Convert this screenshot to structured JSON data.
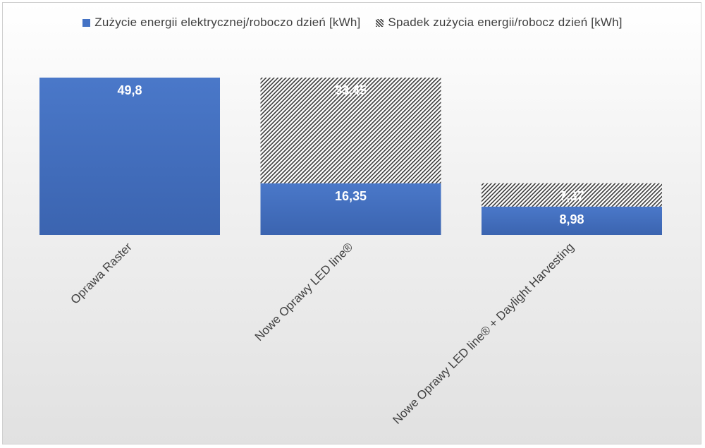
{
  "chart_data": {
    "type": "bar",
    "stacked": true,
    "categories": [
      "Oprawa Raster",
      "Nowe Oprawy LED line®",
      "Nowe Oprawy LED line® + Daylight Harvesting"
    ],
    "series": [
      {
        "name": "Zużycie energii elektrycznej/roboczo dzień [kWh]",
        "values": [
          49.8,
          16.35,
          8.98
        ],
        "labels": [
          "49,8",
          "16,35",
          "8,98"
        ],
        "color": "#4472c4",
        "pattern": "solid"
      },
      {
        "name": "Spadek zużycia energii/robocz dzień [kWh]",
        "values": [
          null,
          33.45,
          7.37
        ],
        "labels": [
          "",
          "33,45",
          "7,37"
        ],
        "color": "#404040",
        "pattern": "hatch"
      }
    ],
    "ylim": [
      0,
      49.8
    ],
    "grid": false,
    "legend_position": "top",
    "label_rotation": -45
  }
}
